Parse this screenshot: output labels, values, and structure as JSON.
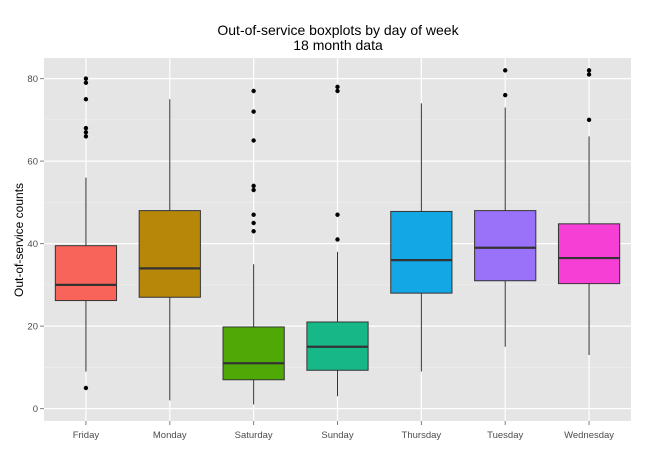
{
  "chart_data": {
    "type": "boxplot",
    "title": "Out-of-service boxplots by day of week",
    "subtitle": "18 month data",
    "xlabel": "",
    "ylabel": "Out-of-service counts",
    "ylim": [
      -3,
      85
    ],
    "yticks": [
      0,
      20,
      40,
      60,
      80
    ],
    "grid": true,
    "legend": "none",
    "panel_color": "#e5e5e5",
    "grid_color": "#ffffff",
    "categories": [
      "Friday",
      "Monday",
      "Saturday",
      "Sunday",
      "Thursday",
      "Tuesday",
      "Wednesday"
    ],
    "boxes": [
      {
        "name": "Friday",
        "whisker_low": 9,
        "q1": 26.2,
        "median": 30,
        "q3": 39.5,
        "whisker_high": 56,
        "outliers": [
          5,
          66,
          67,
          68,
          75,
          79,
          80
        ],
        "color": "#f8635a"
      },
      {
        "name": "Monday",
        "whisker_low": 2,
        "q1": 27,
        "median": 34,
        "q3": 48,
        "whisker_high": 75,
        "outliers": [],
        "color": "#b7870a"
      },
      {
        "name": "Saturday",
        "whisker_low": 1,
        "q1": 7,
        "median": 11,
        "q3": 19.8,
        "whisker_high": 35,
        "outliers": [
          43,
          45,
          47,
          53,
          54,
          65,
          72,
          77
        ],
        "color": "#4ea806"
      },
      {
        "name": "Sunday",
        "whisker_low": 3,
        "q1": 9.3,
        "median": 15,
        "q3": 21,
        "whisker_high": 38,
        "outliers": [
          41,
          47,
          77,
          78
        ],
        "color": "#17b887"
      },
      {
        "name": "Thursday",
        "whisker_low": 9,
        "q1": 28,
        "median": 36,
        "q3": 47.8,
        "whisker_high": 74,
        "outliers": [],
        "color": "#13a7e6"
      },
      {
        "name": "Tuesday",
        "whisker_low": 15,
        "q1": 31,
        "median": 39,
        "q3": 48,
        "whisker_high": 73,
        "outliers": [
          76,
          82
        ],
        "color": "#9a72f9"
      },
      {
        "name": "Wednesday",
        "whisker_low": 13,
        "q1": 30.3,
        "median": 36.5,
        "q3": 44.8,
        "whisker_high": 66,
        "outliers": [
          70,
          81,
          82
        ],
        "color": "#f53fd5"
      }
    ]
  }
}
